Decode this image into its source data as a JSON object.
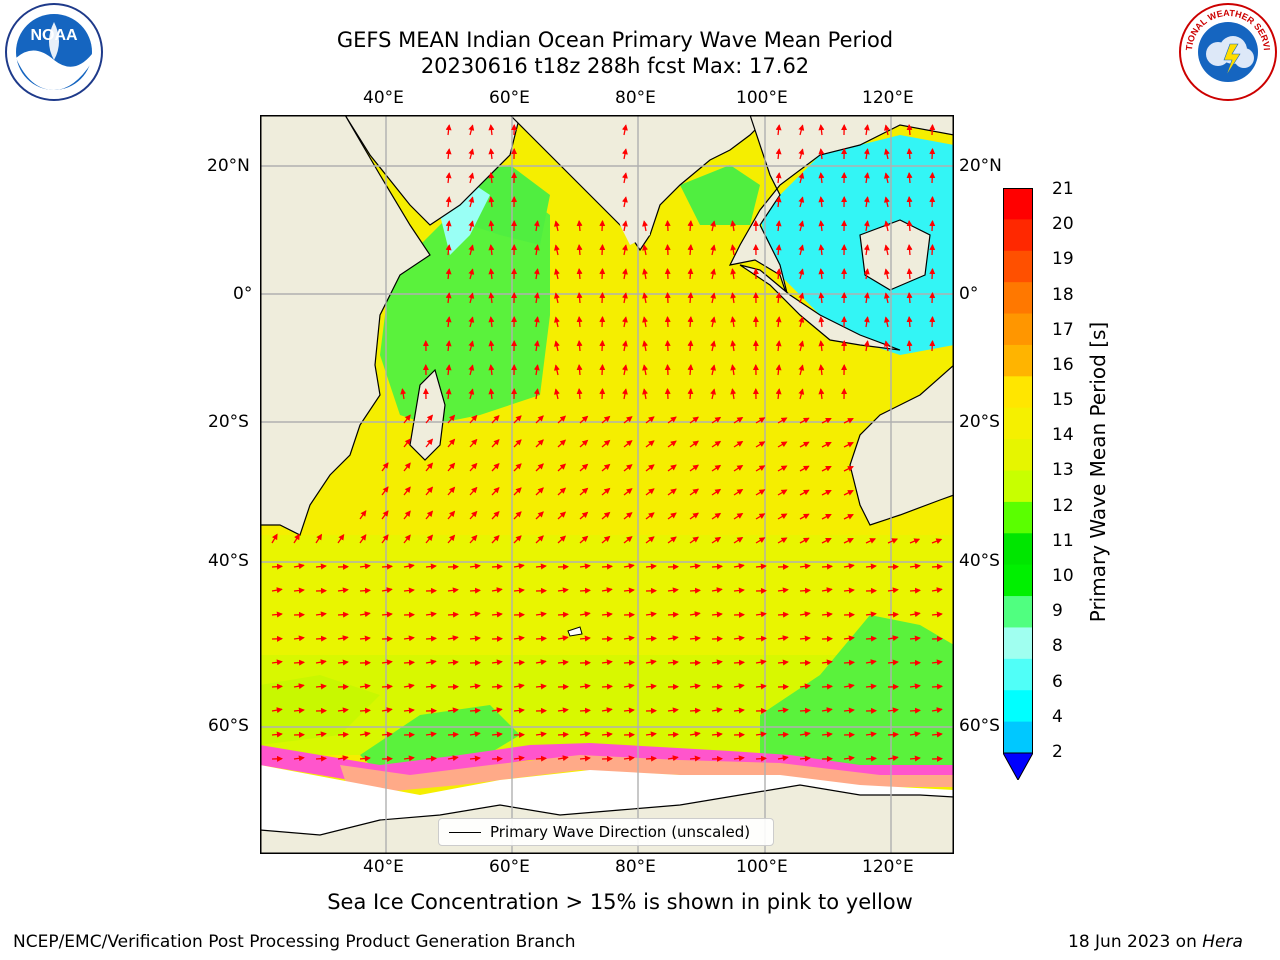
{
  "title": {
    "line1": "GEFS MEAN Indian Ocean Primary Wave Mean Period",
    "line2": "20230616 t18z 288h fcst   Max: 17.62"
  },
  "colors": {
    "land": "#efeddc",
    "ice": "#ffffff",
    "arrow": "#ff0000",
    "grid": "#b0b0b0",
    "coast": "#000000",
    "ice_edge": [
      "#ff00ff",
      "#ff88aa",
      "#ffaa66"
    ]
  },
  "map": {
    "projection": "cylindrical",
    "lon_range": [
      20,
      130
    ],
    "lat_range": [
      -85,
      30
    ],
    "top_lon_labels": [
      "40°E",
      "60°E",
      "80°E",
      "100°E",
      "120°E"
    ],
    "bottom_lon_labels": [
      "40°E",
      "60°E",
      "80°E",
      "100°E",
      "120°E"
    ],
    "left_lat_labels": [
      "20°N",
      "0°",
      "20°S",
      "40°S",
      "60°S"
    ],
    "right_lat_labels": [
      "20°N",
      "0°",
      "20°S",
      "40°S",
      "60°S"
    ],
    "grid": true
  },
  "colorbar": {
    "label": "Primary Wave Mean Period [s]",
    "ticks": [
      "21",
      "20",
      "19",
      "18",
      "17",
      "16",
      "15",
      "14",
      "13",
      "12",
      "11",
      "10",
      "9",
      "8",
      "6",
      "4",
      "2"
    ],
    "colors": [
      "#ff0000",
      "#ff2800",
      "#ff5000",
      "#ff7800",
      "#ff9600",
      "#ffb400",
      "#ffe600",
      "#f5f000",
      "#e6f500",
      "#c8ff00",
      "#5aff00",
      "#00e600",
      "#00f000",
      "#50ff80",
      "#a0fff0",
      "#50fff8",
      "#00ffff",
      "#00c8ff",
      "#0050ff"
    ],
    "extend": "min"
  },
  "legend": {
    "label": "Primary Wave Direction (unscaled)",
    "placement": "bottom-center"
  },
  "subtitle": "Sea Ice Concentration > 15% is shown in pink to yellow",
  "footer": {
    "left": "NCEP/EMC/Verification Post Processing Product Generation Branch",
    "right_prefix": "18 Jun 2023 on ",
    "right_host": "Hera"
  },
  "logos": {
    "noaa_text": "NOAA",
    "nws_text": "NATIONAL WEATHER SERVICE"
  }
}
